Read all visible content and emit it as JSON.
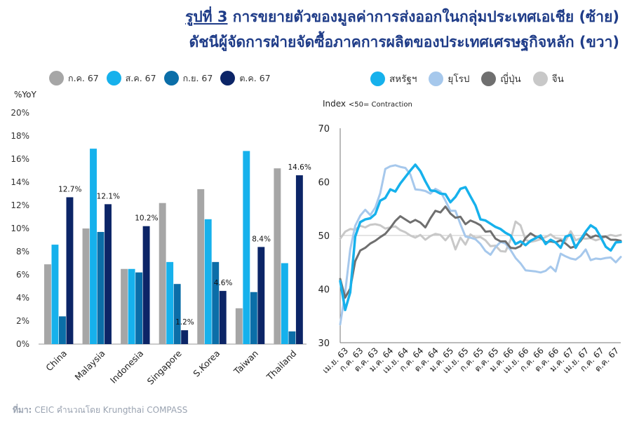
{
  "header": {
    "fig_label": "รูปที่ 3",
    "title_line1": "การขยายตัวของมูลค่าการส่งออกในกลุ่มประเทศเอเชีย (ซ้าย)",
    "title_line2": "ดัชนีผู้จัดการฝ่ายจัดซื้อภาคการผลิตของประเทศเศรษฐกิจหลัก (ขวา)"
  },
  "source": {
    "label": "ที่มา:",
    "text": "CEIC คำนวณโดย Krungthai COMPASS"
  },
  "chart_data": [
    {
      "type": "bar",
      "unit_label": "%YoY",
      "ylim": [
        0,
        20
      ],
      "ytick_labels": [
        "0%",
        "2%",
        "4%",
        "6%",
        "8%",
        "10%",
        "12%",
        "14%",
        "16%",
        "18%",
        "20%"
      ],
      "categories": [
        "China",
        "Malaysia",
        "Indonesia",
        "Singapore",
        "S.Korea",
        "Taiwan",
        "Thailand"
      ],
      "series": [
        {
          "name": "ก.ค. 67",
          "color": "#a6a6a6",
          "values": [
            6.9,
            10.0,
            6.5,
            12.2,
            13.4,
            3.1,
            15.2
          ]
        },
        {
          "name": "ส.ค. 67",
          "color": "#16b1ec",
          "values": [
            8.6,
            16.9,
            6.5,
            7.1,
            10.8,
            16.7,
            7.0
          ]
        },
        {
          "name": "ก.ย. 67",
          "color": "#0b6ea8",
          "values": [
            2.4,
            9.7,
            6.2,
            5.2,
            7.1,
            4.5,
            1.1
          ]
        },
        {
          "name": "ต.ค. 67",
          "color": "#0c2567",
          "values": [
            12.7,
            12.1,
            10.2,
            1.2,
            4.6,
            8.4,
            14.6
          ]
        }
      ],
      "data_labels": [
        "12.7%",
        "12.1%",
        "10.2%",
        "1.2%",
        "4.6%",
        "8.4%",
        "14.6%"
      ],
      "legend": "top",
      "grid": false
    },
    {
      "type": "line",
      "unit_label": "Index",
      "note": "<50= Contraction",
      "ylim": [
        30,
        70
      ],
      "yticks": [
        30,
        40,
        50,
        60,
        70
      ],
      "reference_line": 50,
      "x_tick_labels": [
        "เม.ย. 63",
        "ก.ค. 63",
        "ต.ค. 63",
        "ม.ค. 64",
        "เม.ย. 64",
        "ก.ค. 64",
        "ต.ค. 64",
        "ม.ค. 65",
        "เม.ย. 65",
        "ก.ค. 65",
        "ต.ค. 65",
        "ม.ค. 66",
        "เม.ย. 66",
        "ก.ค. 66",
        "ต.ค. 66",
        "ม.ค. 67",
        "เม.ย. 67",
        "ก.ค. 67",
        "ต.ค. 67"
      ],
      "legend": "top",
      "grid": false,
      "series": [
        {
          "name": "สหรัฐฯ",
          "color": "#16b1ec",
          "width": 3.5,
          "values": [
            41.5,
            36.1,
            39.4,
            49.8,
            52.5,
            53,
            53.2,
            54,
            56.5,
            57,
            58.6,
            58.2,
            59.7,
            60.9,
            62.1,
            63.2,
            62,
            60.1,
            58.4,
            58.3,
            57.8,
            57.7,
            56.2,
            57.2,
            58.7,
            59,
            57.3,
            55.6,
            53,
            52.8,
            52.2,
            51.6,
            51.2,
            50.5,
            50,
            48.4,
            48.9,
            48.2,
            49,
            49.5,
            50,
            48.4,
            49.2,
            48.7,
            47.7,
            49.8,
            50.1,
            47.7,
            49.3,
            50.7,
            51.9,
            51.3,
            49.7,
            47.9,
            47.2,
            48.7,
            48.8
          ]
        },
        {
          "name": "ยุโรป",
          "color": "#a6c8ec",
          "width": 3,
          "values": [
            33.4,
            39.4,
            47.4,
            51.8,
            53.7,
            54.8,
            53.8,
            55.2,
            57.9,
            62.4,
            62.9,
            63.1,
            62.8,
            62.6,
            61.4,
            58.6,
            58.5,
            58.3,
            57.8,
            58.7,
            58.2,
            56.5,
            54.6,
            54.6,
            52.1,
            49.8,
            49.6,
            49.3,
            48.4,
            47.1,
            46.4,
            47.8,
            48.8,
            48.5,
            47.3,
            45.8,
            44.8,
            43.5,
            43.4,
            43.3,
            43.1,
            43.4,
            44.2,
            43.3,
            46.6,
            46.1,
            45.7,
            45.5,
            46.2,
            47.4,
            45.4,
            45.7,
            45.6,
            45.8,
            45.9,
            45.0,
            46.0
          ]
        },
        {
          "name": "ญี่ปุ่น",
          "color": "#6f6f6f",
          "width": 3,
          "values": [
            41.9,
            38.4,
            40.1,
            45.2,
            47.2,
            47.7,
            48.5,
            49.0,
            49.7,
            50.3,
            51.4,
            52.7,
            53.6,
            53.0,
            52.4,
            52.9,
            52.4,
            51.5,
            53.2,
            54.6,
            54.3,
            55.4,
            54.1,
            53.3,
            53.5,
            52.1,
            52.8,
            52.4,
            51.9,
            50.7,
            50.8,
            49.4,
            48.9,
            48.9,
            47.7,
            47.6,
            48.0,
            49.5,
            50.4,
            49.8,
            49.6,
            48.7,
            48.9,
            48.7,
            49.1,
            48.5,
            47.7,
            48.0,
            49.0,
            50.4,
            49.6,
            50.0,
            49.7,
            49.8,
            49.2,
            49.2,
            49.0
          ]
        },
        {
          "name": "จีน",
          "color": "#c8c8c8",
          "width": 3,
          "values": [
            49.4,
            50.7,
            51.2,
            51.1,
            51.8,
            51.5,
            52.0,
            52.1,
            51.9,
            51.3,
            51.5,
            51.7,
            51.0,
            50.6,
            50.0,
            49.6,
            50.1,
            49.2,
            49.9,
            50.3,
            50.1,
            49.1,
            50.2,
            47.4,
            49.6,
            48.3,
            50.2,
            49.6,
            49.7,
            49.1,
            48.0,
            48.1,
            47.1,
            47.0,
            49.2,
            52.6,
            51.9,
            49.2,
            48.8,
            49.0,
            49.3,
            49.7,
            50.2,
            49.5,
            49.4,
            49.0,
            50.8,
            49.1,
            49.5,
            49.4,
            49.5,
            49.1,
            49.4,
            49.8,
            50.1,
            49.9,
            50.1
          ]
        }
      ]
    }
  ]
}
